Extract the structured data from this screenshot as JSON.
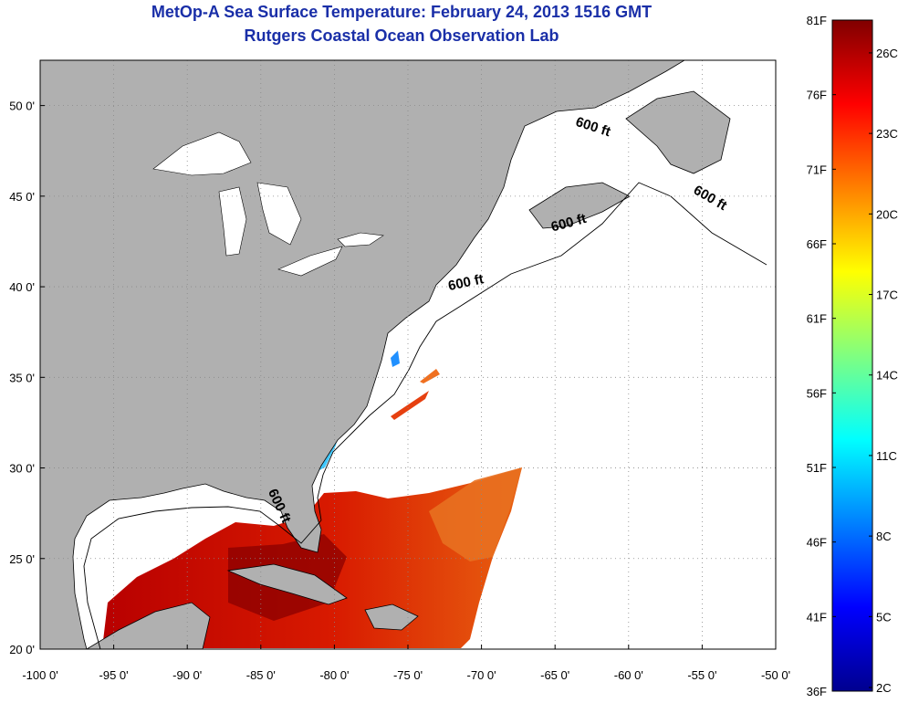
{
  "title": {
    "line1": "MetOp-A Sea Surface Temperature:  February 24, 2013 1516 GMT",
    "line2": "Rutgers Coastal Ocean Observation Lab"
  },
  "map": {
    "lon_range": [
      -100,
      -50
    ],
    "lat_range": [
      20,
      52.5
    ],
    "lon_ticks": [
      {
        "value": -100,
        "label": "-100 0'"
      },
      {
        "value": -95,
        "label": "-95 0'"
      },
      {
        "value": -90,
        "label": "-90 0'"
      },
      {
        "value": -85,
        "label": "-85 0'"
      },
      {
        "value": -80,
        "label": "-80 0'"
      },
      {
        "value": -75,
        "label": "-75 0'"
      },
      {
        "value": -70,
        "label": "-70 0'"
      },
      {
        "value": -65,
        "label": "-65 0'"
      },
      {
        "value": -60,
        "label": "-60 0'"
      },
      {
        "value": -55,
        "label": "-55 0'"
      },
      {
        "value": -50,
        "label": "-50 0'"
      }
    ],
    "lat_ticks": [
      {
        "value": 20,
        "label": "20 0'"
      },
      {
        "value": 25,
        "label": "25 0'"
      },
      {
        "value": 30,
        "label": "30 0'"
      },
      {
        "value": 35,
        "label": "35 0'"
      },
      {
        "value": 40,
        "label": "40 0'"
      },
      {
        "value": 45,
        "label": "45 0'"
      },
      {
        "value": 50,
        "label": "50 0'"
      }
    ],
    "grid": "dotted",
    "land_color": "#b0b0b0",
    "contour_label": "600 ft",
    "contour_label_positions": [
      {
        "lon": -62.5,
        "lat": 48.6,
        "rotate": 18
      },
      {
        "lon": -54.6,
        "lat": 44.7,
        "rotate": 30
      },
      {
        "lon": -64.0,
        "lat": 43.3,
        "rotate": -15
      },
      {
        "lon": -71.0,
        "lat": 40.0,
        "rotate": -12
      },
      {
        "lon": -84.0,
        "lat": 27.8,
        "rotate": 65
      }
    ]
  },
  "colorbar": {
    "fahrenheit_labels": [
      "81F",
      "76F",
      "71F",
      "66F",
      "61F",
      "56F",
      "51F",
      "46F",
      "41F",
      "36F"
    ],
    "celsius_labels": [
      "26C",
      "23C",
      "20C",
      "17C",
      "14C",
      "11C",
      "8C",
      "5C",
      "2C"
    ],
    "f_range": [
      36,
      81
    ],
    "colors": [
      "#00008f",
      "#0000ff",
      "#0080ff",
      "#00ffff",
      "#80ff80",
      "#ffff00",
      "#ff8000",
      "#ff0000",
      "#800000"
    ]
  }
}
